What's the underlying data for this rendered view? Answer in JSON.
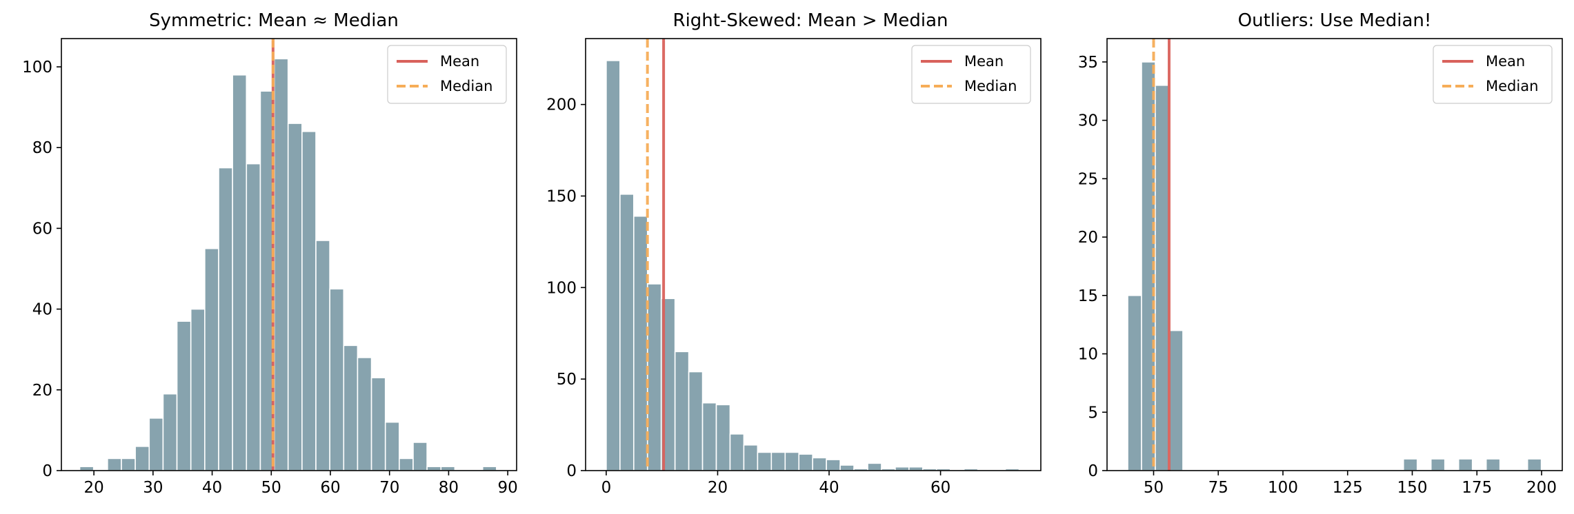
{
  "colors": {
    "bar_fill": "#87a3ae",
    "bar_edge": "#ffffff",
    "mean_line": "#d9625c",
    "median_line": "#f6ad58",
    "axes": "#000000"
  },
  "legend": {
    "placement": "upper-right",
    "mean_label": "Mean",
    "median_label": "Median"
  },
  "chart_data": [
    {
      "type": "bar",
      "title": "Symmetric: Mean ≈ Median",
      "xlabel": "",
      "ylabel": "",
      "xlim": [
        14.5,
        91.5
      ],
      "ylim": [
        0,
        107
      ],
      "xticks": [
        20,
        30,
        40,
        50,
        60,
        70,
        80,
        90
      ],
      "yticks": [
        0,
        20,
        40,
        60,
        80,
        100
      ],
      "bin_start": 17.6,
      "bin_width": 2.35,
      "counts": [
        1,
        0,
        3,
        3,
        6,
        13,
        19,
        37,
        40,
        55,
        75,
        98,
        76,
        94,
        102,
        86,
        84,
        57,
        45,
        31,
        28,
        23,
        12,
        3,
        7,
        1,
        1,
        0,
        0,
        1
      ],
      "mean": 50.3,
      "median": 50.3
    },
    {
      "type": "bar",
      "title": "Right-Skewed: Mean > Median",
      "xlabel": "",
      "ylabel": "",
      "xlim": [
        -3.7,
        78.0
      ],
      "ylim": [
        0,
        236
      ],
      "xticks": [
        0,
        20,
        40,
        60
      ],
      "yticks": [
        0,
        50,
        100,
        150,
        200
      ],
      "bin_start": 0,
      "bin_width": 2.47,
      "counts": [
        224,
        151,
        139,
        102,
        94,
        65,
        54,
        37,
        36,
        20,
        14,
        10,
        10,
        10,
        9,
        7,
        6,
        3,
        1,
        4,
        1,
        2,
        2,
        1,
        1,
        0,
        1,
        0,
        0,
        1
      ],
      "mean": 10.3,
      "median": 7.4
    },
    {
      "type": "bar",
      "title": "Outliers: Use Median!",
      "xlabel": "",
      "ylabel": "",
      "xlim": [
        32,
        208
      ],
      "ylim": [
        0,
        37
      ],
      "xticks": [
        50,
        75,
        100,
        125,
        150,
        175,
        200
      ],
      "yticks": [
        0,
        5,
        10,
        15,
        20,
        25,
        30,
        35
      ],
      "bin_start": 40,
      "bin_width": 5.33,
      "counts": [
        15,
        35,
        33,
        12,
        0,
        0,
        0,
        0,
        0,
        0,
        0,
        0,
        0,
        0,
        0,
        0,
        0,
        0,
        0,
        0,
        1,
        0,
        1,
        0,
        1,
        0,
        1,
        0,
        0,
        1
      ],
      "mean": 56.0,
      "median": 50.0
    }
  ]
}
